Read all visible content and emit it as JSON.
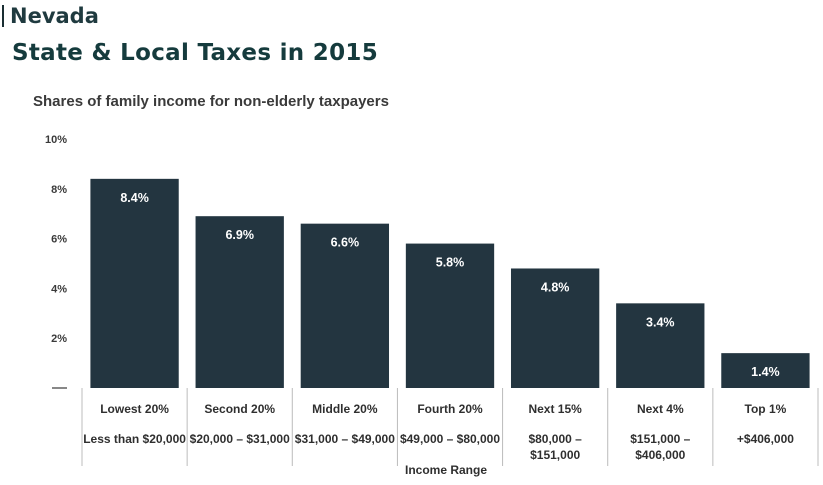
{
  "header": {
    "state": "Nevada",
    "title": "State & Local Taxes in 2015"
  },
  "colors": {
    "bar": "#233540",
    "divider": "#bcbcbc",
    "title": "#153b3d"
  },
  "chart_data": {
    "type": "bar",
    "title": "Shares of family income for non-elderly taxpayers",
    "xlabel": "Income Range",
    "ylabel": "",
    "ylim": [
      0,
      10
    ],
    "yticks": [
      {
        "value": 2,
        "label": "2%"
      },
      {
        "value": 4,
        "label": "4%"
      },
      {
        "value": 6,
        "label": "6%"
      },
      {
        "value": 8,
        "label": "8%"
      },
      {
        "value": 10,
        "label": "10%"
      }
    ],
    "grid": false,
    "categories": [
      "Lowest 20%",
      "Second 20%",
      "Middle 20%",
      "Fourth 20%",
      "Next 15%",
      "Next 4%",
      "Top 1%"
    ],
    "ranges": [
      [
        "Less than $20,000"
      ],
      [
        "$20,000 – $31,000"
      ],
      [
        "$31,000 – $49,000"
      ],
      [
        "$49,000 – $80,000"
      ],
      [
        "$80,000 –",
        "$151,000"
      ],
      [
        "$151,000 –",
        "$406,000"
      ],
      [
        "+$406,000"
      ]
    ],
    "values": [
      8.4,
      6.9,
      6.6,
      5.8,
      4.8,
      3.4,
      1.4
    ],
    "value_labels": [
      "8.4%",
      "6.9%",
      "6.6%",
      "5.8%",
      "4.8%",
      "3.4%",
      "1.4%"
    ]
  }
}
